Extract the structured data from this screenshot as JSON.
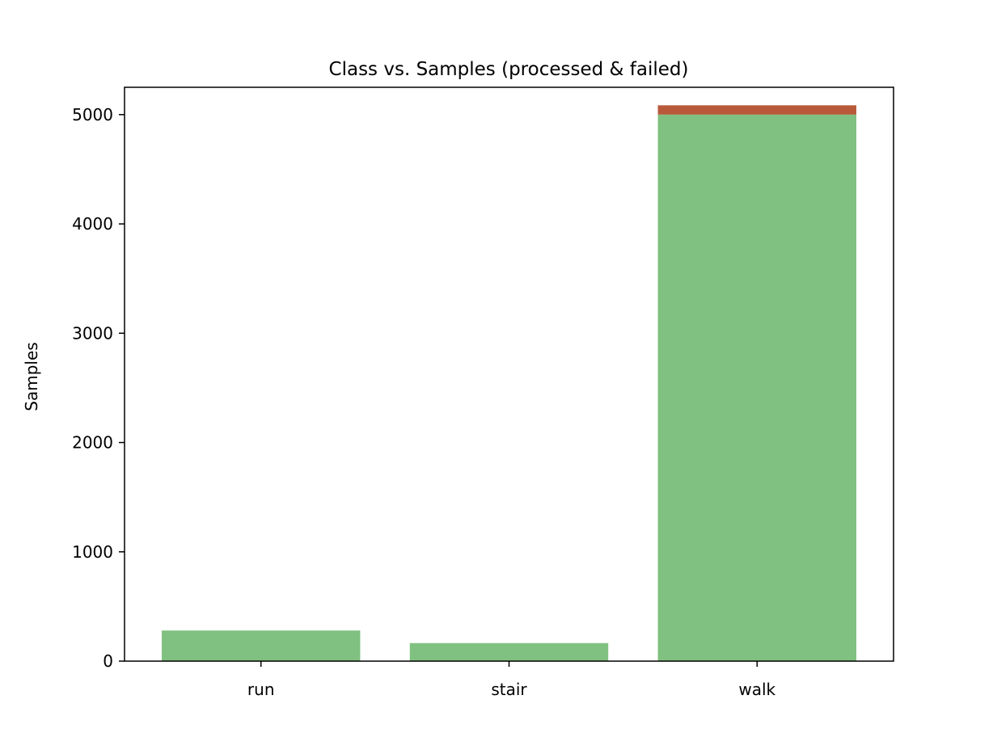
{
  "chart_data": {
    "type": "bar",
    "stacked": true,
    "title": "Class vs. Samples (processed & failed)",
    "xlabel": "",
    "ylabel": "Samples",
    "categories": [
      "run",
      "stair",
      "walk"
    ],
    "series": [
      {
        "values": [
          280,
          165,
          5000
        ],
        "color": "#80c080"
      },
      {
        "values": [
          0,
          0,
          85
        ],
        "color": "#b85a3a"
      }
    ],
    "ylim": [
      0,
      5250
    ],
    "yticks": [
      0,
      1000,
      2000,
      3000,
      4000,
      5000
    ],
    "grid": false,
    "legend": "none"
  }
}
